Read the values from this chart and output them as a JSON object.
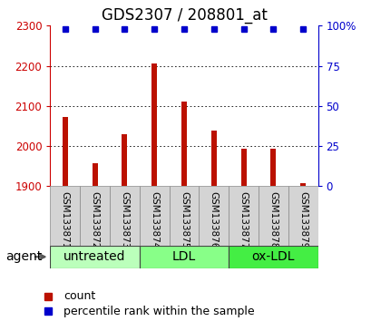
{
  "title": "GDS2307 / 208801_at",
  "samples": [
    "GSM133871",
    "GSM133872",
    "GSM133873",
    "GSM133874",
    "GSM133875",
    "GSM133876",
    "GSM133877",
    "GSM133878",
    "GSM133879"
  ],
  "counts": [
    2072,
    1958,
    2030,
    2205,
    2110,
    2038,
    1993,
    1993,
    1908
  ],
  "percentiles": [
    98,
    98,
    98,
    98,
    98,
    98,
    98,
    98,
    98
  ],
  "ylim_left": [
    1900,
    2300
  ],
  "ylim_right": [
    0,
    100
  ],
  "yticks_left": [
    1900,
    2000,
    2100,
    2200,
    2300
  ],
  "yticks_right": [
    0,
    25,
    50,
    75,
    100
  ],
  "groups": [
    {
      "label": "untreated",
      "start": 0,
      "end": 3,
      "color": "#bbffbb"
    },
    {
      "label": "LDL",
      "start": 3,
      "end": 6,
      "color": "#88ff88"
    },
    {
      "label": "ox-LDL",
      "start": 6,
      "end": 9,
      "color": "#44ee44"
    }
  ],
  "bar_color": "#bb1100",
  "dot_color": "#0000cc",
  "bar_width": 0.18,
  "agent_label": "agent",
  "legend_count_color": "#bb1100",
  "legend_pct_color": "#0000cc",
  "grid_color": "#000000",
  "sample_box_color": "#d4d4d4",
  "sample_box_edge": "#888888",
  "background_color": "#ffffff",
  "left_tick_color": "#cc0000",
  "right_tick_color": "#0000cc",
  "title_fontsize": 12,
  "tick_fontsize": 8.5,
  "legend_fontsize": 9,
  "group_label_fontsize": 10,
  "agent_fontsize": 10,
  "sample_fontsize": 7.5
}
